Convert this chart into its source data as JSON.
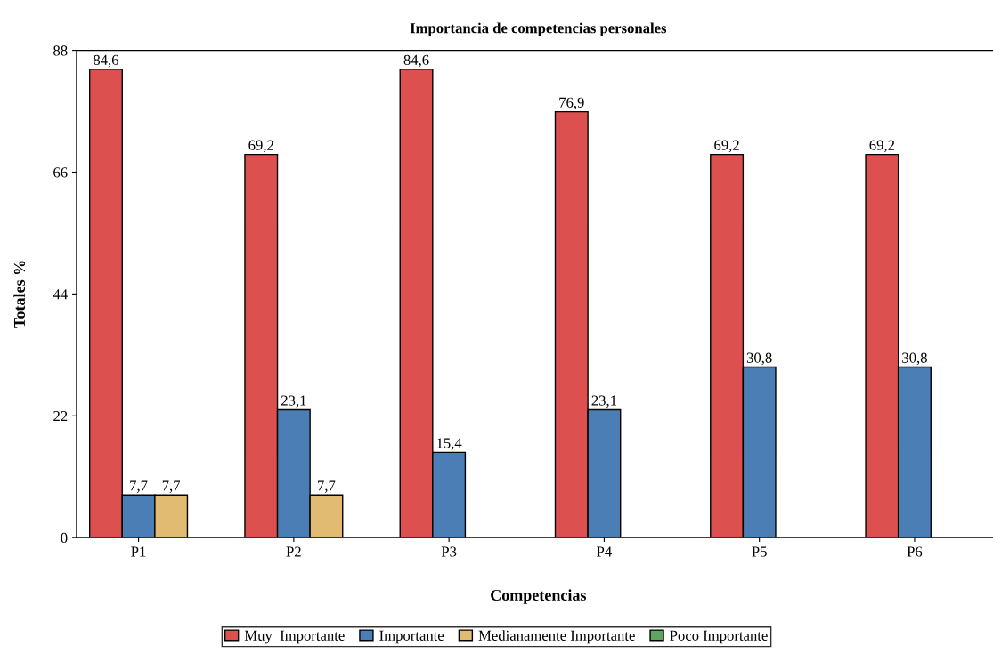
{
  "chart_data": {
    "type": "bar",
    "title": "Importancia de competencias personales",
    "xlabel": "Competencias",
    "ylabel": "Totales %",
    "categories": [
      "P1",
      "P2",
      "P3",
      "P4",
      "P5",
      "P6"
    ],
    "series": [
      {
        "name": "Muy  Importante",
        "color": "#dc5050",
        "values": [
          84.6,
          69.2,
          84.6,
          76.9,
          69.2,
          69.2
        ],
        "value_labels": [
          "84,6",
          "69,2",
          "84,6",
          "76,9",
          "69,2",
          "69,2"
        ]
      },
      {
        "name": "Importante",
        "color": "#4a7eb4",
        "values": [
          7.7,
          23.1,
          15.4,
          23.1,
          30.8,
          30.8
        ],
        "value_labels": [
          "7,7",
          "23,1",
          "15,4",
          "23,1",
          "30,8",
          "30,8"
        ]
      },
      {
        "name": "Medianamente Importante",
        "color": "#e2bb72",
        "values": [
          7.7,
          7.7,
          null,
          null,
          null,
          null
        ],
        "value_labels": [
          "7,7",
          "7,7",
          null,
          null,
          null,
          null
        ]
      },
      {
        "name": "Poco Importante",
        "color": "#5fa55f",
        "values": [
          null,
          null,
          null,
          null,
          null,
          null
        ],
        "value_labels": [
          null,
          null,
          null,
          null,
          null,
          null
        ]
      }
    ],
    "ylim": [
      0,
      88
    ],
    "yticks": [
      0,
      22,
      44,
      66,
      88
    ],
    "grid": false,
    "legend": "bottom"
  }
}
